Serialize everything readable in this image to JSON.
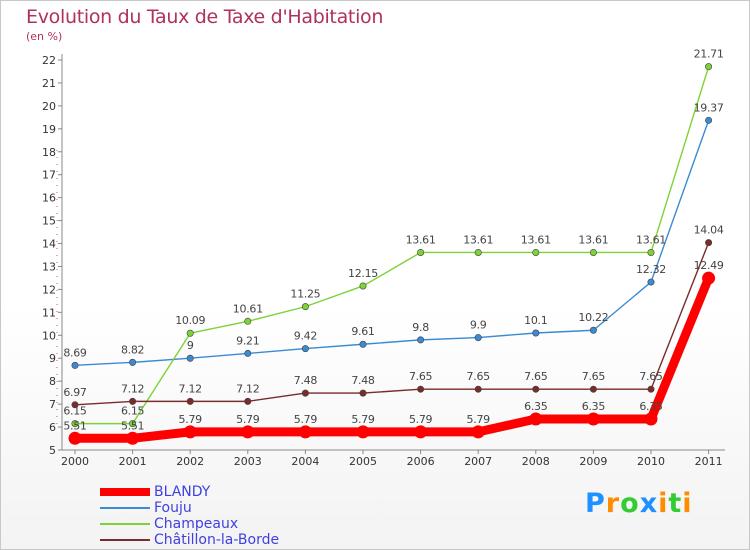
{
  "header": {
    "title": "Evolution du Taux de Taxe d'Habitation",
    "unit": "(en %)"
  },
  "logo": {
    "text": "Proxiti",
    "letters": [
      {
        "ch": "P",
        "color": "#1e90ff"
      },
      {
        "ch": "r",
        "color": "#ff8c00"
      },
      {
        "ch": "o",
        "color": "#32cd32"
      },
      {
        "ch": "x",
        "color": "#1e90ff"
      },
      {
        "ch": "i",
        "color": "#ff8c00"
      },
      {
        "ch": "t",
        "color": "#32cd32"
      },
      {
        "ch": "i",
        "color": "#ff8c00"
      }
    ]
  },
  "chart_data": {
    "type": "line",
    "title": "Evolution du Taux de Taxe d'Habitation",
    "ylabel": "(en %)",
    "xlabel": "",
    "x": [
      "2000",
      "2001",
      "2002",
      "2003",
      "2004",
      "2005",
      "2006",
      "2007",
      "2008",
      "2009",
      "2010",
      "2011"
    ],
    "ylim": [
      5,
      22
    ],
    "yticks": [
      "5",
      "6",
      "7",
      "8",
      "9",
      "10",
      "11",
      "12",
      "13",
      "14",
      "15",
      "16",
      "17",
      "18",
      "19",
      "20",
      "21",
      "22"
    ],
    "grid": false,
    "legend_position": "bottom-left",
    "series": [
      {
        "name": "BLANDY",
        "color": "#ff0000",
        "values": [
          5.51,
          5.51,
          5.79,
          5.79,
          5.79,
          5.79,
          5.79,
          5.79,
          6.35,
          6.35,
          6.35,
          12.49
        ],
        "labels": [
          "5.51",
          "5.51",
          "5.79",
          "5.79",
          "5.79",
          "5.79",
          "5.79",
          "5.79",
          "6.35",
          "6.35",
          "6.35",
          "12.49"
        ]
      },
      {
        "name": "Fouju",
        "color": "#3c8ad3",
        "values": [
          8.69,
          8.82,
          9.0,
          9.21,
          9.42,
          9.61,
          9.8,
          9.9,
          10.1,
          10.22,
          12.32,
          19.37
        ],
        "labels": [
          "8.69",
          "8.82",
          "9",
          "9.21",
          "9.42",
          "9.61",
          "9.8",
          "9.9",
          "10.1",
          "10.22",
          "12.32",
          "19.37"
        ]
      },
      {
        "name": "Champeaux",
        "color": "#7dd335",
        "values": [
          6.15,
          6.15,
          10.09,
          10.61,
          11.25,
          12.15,
          13.61,
          13.61,
          13.61,
          13.61,
          13.61,
          21.71
        ],
        "labels": [
          "6.15",
          "6.15",
          "10.09",
          "10.61",
          "11.25",
          "12.15",
          "13.61",
          "13.61",
          "13.61",
          "13.61",
          "13.61",
          "21.71"
        ]
      },
      {
        "name": "Châtillon-la-Borde",
        "color": "#7a2b2b",
        "values": [
          6.97,
          7.12,
          7.12,
          7.12,
          7.48,
          7.48,
          7.65,
          7.65,
          7.65,
          7.65,
          7.65,
          14.04
        ],
        "labels": [
          "6.97",
          "7.12",
          "7.12",
          "7.12",
          "7.48",
          "7.48",
          "7.65",
          "7.65",
          "7.65",
          "7.65",
          "7.65",
          "14.04"
        ]
      }
    ]
  }
}
